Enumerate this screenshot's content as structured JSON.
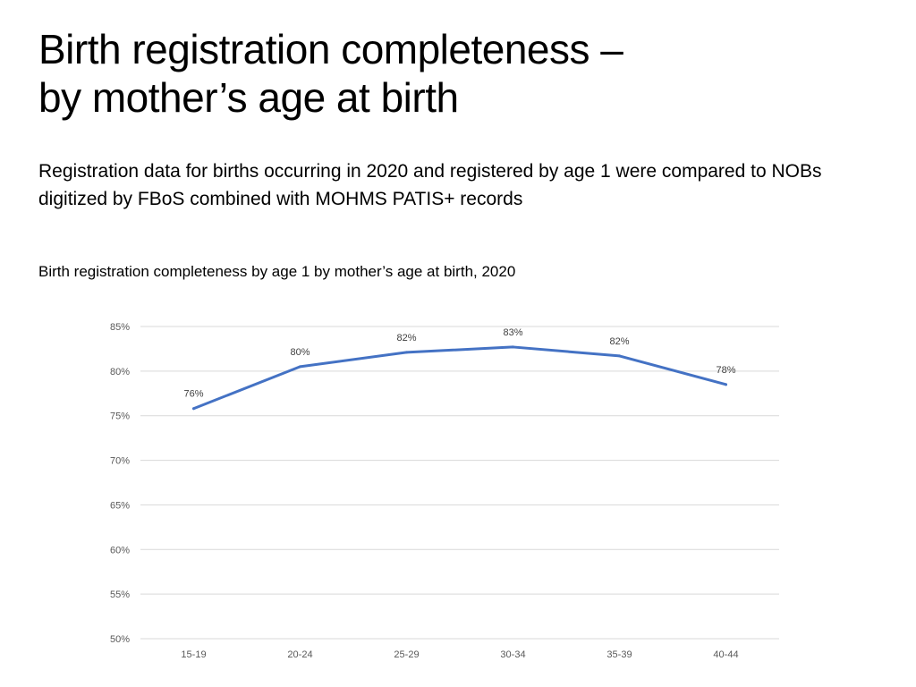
{
  "slide": {
    "title_lines": [
      "Birth registration completeness –",
      "by mother’s age at birth"
    ],
    "subtitle": "Registration data for births occurring in 2020 and registered by age 1 were compared to NOBs digitized by FBoS combined with MOHMS PATIS+ records"
  },
  "chart_data": {
    "type": "line",
    "title": "Birth registration completeness by age 1 by mother’s age at birth, 2020",
    "xlabel": "",
    "ylabel": "",
    "categories": [
      "15-19",
      "20-24",
      "25-29",
      "30-34",
      "35-39",
      "40-44"
    ],
    "series": [
      {
        "values": [
          0.758,
          0.805,
          0.821,
          0.827,
          0.817,
          0.785
        ],
        "data_labels": [
          "76%",
          "80%",
          "82%",
          "83%",
          "82%",
          "78%"
        ]
      }
    ],
    "ylim": [
      0.5,
      0.85
    ],
    "yticks": [
      0.5,
      0.55,
      0.6,
      0.65,
      0.7,
      0.75,
      0.8,
      0.85
    ],
    "ytick_labels": [
      "50%",
      "55%",
      "60%",
      "65%",
      "70%",
      "75%",
      "80%",
      "85%"
    ],
    "grid": true,
    "legend": "none",
    "line_color": "#4472c4",
    "grid_color": "#d9d9d9"
  }
}
